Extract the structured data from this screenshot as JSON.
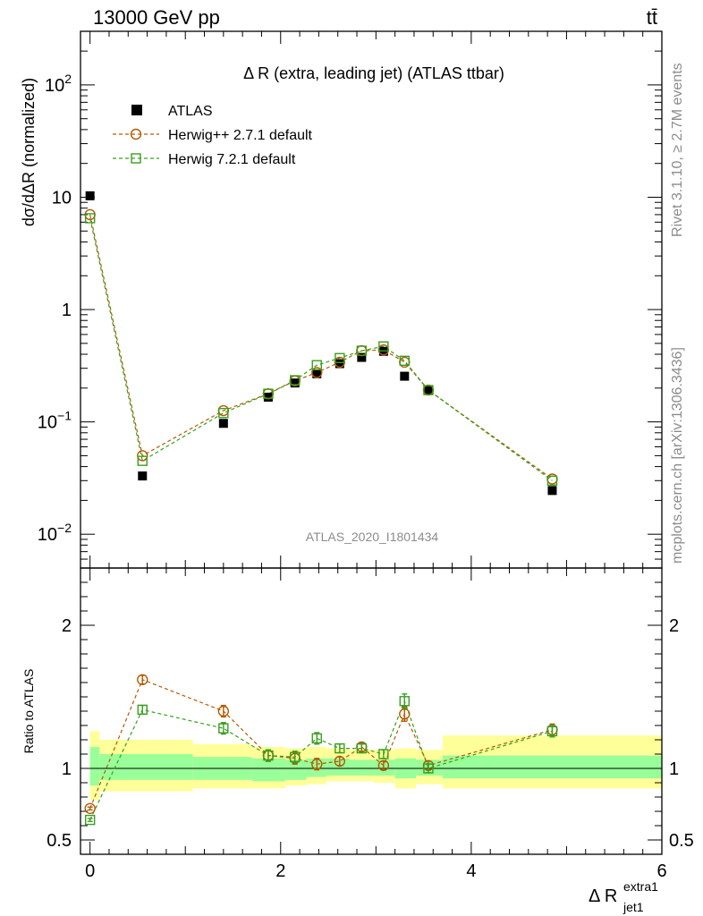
{
  "header": {
    "left": "13000 GeV pp",
    "right": "tt̄"
  },
  "side": {
    "rivet": "Rivet 3.1.10, ≥ 2.7M events",
    "mcplots": "mcplots.cern.ch [arXiv:1306.3436]"
  },
  "analysis_id": "ATLAS_2020_I1801434",
  "chart_data": [
    {
      "type": "scatter",
      "title": "Δ R (extra, leading jet) (ATLAS ttbar)",
      "xlabel": "Δ R",
      "xlabel_sup": "extra1",
      "xlabel_sub": "jet1",
      "ylabel": "dσ/dΔR (normalized)",
      "yscale": "log",
      "xlim": [
        -0.1,
        6.0
      ],
      "ylim": [
        0.005,
        300
      ],
      "ytick_labels": [
        "10−2",
        "10−1",
        "1",
        "10",
        "102"
      ],
      "legend": {
        "placement": "top-left",
        "entries": [
          "ATLAS",
          "Herwig++ 2.7.1 default",
          "Herwig 7.2.1 default"
        ]
      },
      "series": [
        {
          "name": "ATLAS",
          "color": "#000000",
          "marker": "filled-square",
          "x": [
            0.0,
            0.55,
            1.4,
            1.87,
            2.15,
            2.38,
            2.62,
            2.85,
            3.08,
            3.3,
            3.55,
            4.85
          ],
          "y": [
            10.3,
            0.033,
            0.097,
            0.166,
            0.222,
            0.268,
            0.33,
            0.375,
            0.425,
            0.255,
            0.19,
            0.0245
          ]
        },
        {
          "name": "Herwig++ 2.7.1 default",
          "color": "#b35a00",
          "marker": "open-circle",
          "x": [
            0.0,
            0.55,
            1.4,
            1.87,
            2.15,
            2.38,
            2.62,
            2.85,
            3.08,
            3.3,
            3.55,
            4.85
          ],
          "y": [
            7.0,
            0.05,
            0.126,
            0.178,
            0.232,
            0.275,
            0.34,
            0.43,
            0.438,
            0.34,
            0.192,
            0.031
          ]
        },
        {
          "name": "Herwig 7.2.1 default",
          "color": "#3a9e1f",
          "marker": "open-square",
          "x": [
            0.0,
            0.55,
            1.4,
            1.87,
            2.15,
            2.38,
            2.62,
            2.85,
            3.08,
            3.3,
            3.55,
            4.85
          ],
          "y": [
            6.5,
            0.045,
            0.12,
            0.178,
            0.235,
            0.32,
            0.37,
            0.43,
            0.47,
            0.35,
            0.192,
            0.03
          ]
        }
      ]
    },
    {
      "type": "scatter",
      "ylabel": "Ratio to ATLAS",
      "xlim": [
        -0.1,
        6.0
      ],
      "ylim": [
        0.4,
        2.4
      ],
      "xticks": [
        0,
        2,
        4,
        6
      ],
      "yticks": [
        0.5,
        1,
        2
      ],
      "bands": {
        "x_edges": [
          0.0,
          0.1,
          1.08,
          1.7,
          2.05,
          2.27,
          2.48,
          2.72,
          2.97,
          3.2,
          3.42,
          3.7,
          6.0
        ],
        "inner": [
          [
            0.88,
            1.15
          ],
          [
            0.92,
            1.1
          ],
          [
            0.92,
            1.08
          ],
          [
            0.91,
            1.07
          ],
          [
            0.92,
            1.06
          ],
          [
            0.94,
            1.07
          ],
          [
            0.95,
            1.07
          ],
          [
            0.95,
            1.06
          ],
          [
            0.95,
            1.06
          ],
          [
            0.93,
            1.07
          ],
          [
            0.95,
            1.06
          ],
          [
            0.93,
            1.09
          ]
        ],
        "outer": [
          [
            0.78,
            1.26
          ],
          [
            0.84,
            1.2
          ],
          [
            0.86,
            1.17
          ],
          [
            0.86,
            1.15
          ],
          [
            0.88,
            1.14
          ],
          [
            0.89,
            1.15
          ],
          [
            0.91,
            1.14
          ],
          [
            0.91,
            1.13
          ],
          [
            0.9,
            1.13
          ],
          [
            0.86,
            1.14
          ],
          [
            0.89,
            1.13
          ],
          [
            0.86,
            1.23
          ]
        ],
        "inner_color": "#99ff99",
        "outer_color": "#ffff99"
      },
      "series": [
        {
          "name": "Herwig++ 2.7.1 default",
          "color": "#b35a00",
          "marker": "open-circle",
          "x": [
            0.0,
            0.55,
            1.4,
            1.87,
            2.15,
            2.38,
            2.62,
            2.85,
            3.08,
            3.3,
            3.55,
            4.85
          ],
          "y": [
            0.72,
            1.62,
            1.4,
            1.09,
            1.07,
            1.03,
            1.05,
            1.15,
            1.02,
            1.38,
            1.02,
            1.27
          ],
          "err": [
            0.01,
            0.03,
            0.04,
            0.04,
            0.04,
            0.04,
            0.03,
            0.03,
            0.03,
            0.05,
            0.03,
            0.04
          ]
        },
        {
          "name": "Herwig 7.2.1 default",
          "color": "#3a9e1f",
          "marker": "open-square",
          "x": [
            0.0,
            0.55,
            1.4,
            1.87,
            2.15,
            2.38,
            2.62,
            2.85,
            3.08,
            3.3,
            3.55,
            4.85
          ],
          "y": [
            0.64,
            1.41,
            1.28,
            1.09,
            1.08,
            1.21,
            1.14,
            1.14,
            1.1,
            1.47,
            1.0,
            1.26
          ],
          "err": [
            0.01,
            0.03,
            0.04,
            0.04,
            0.04,
            0.04,
            0.03,
            0.03,
            0.03,
            0.05,
            0.03,
            0.04
          ]
        }
      ]
    }
  ]
}
